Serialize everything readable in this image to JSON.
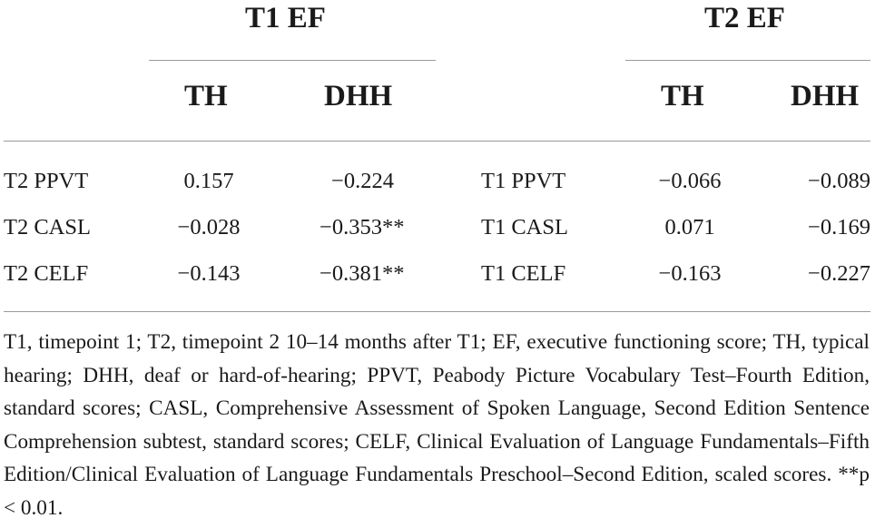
{
  "table": {
    "group_headers": {
      "left": "T1 EF",
      "right": "T2 EF"
    },
    "sub_headers": {
      "left": [
        "TH",
        "DHH"
      ],
      "right": [
        "TH",
        "DHH"
      ]
    },
    "left_rows": [
      {
        "label": "T2 PPVT",
        "th": "0.157",
        "dhh": "−0.224"
      },
      {
        "label": "T2 CASL",
        "th": "−0.028",
        "dhh": "−0.353**"
      },
      {
        "label": "T2 CELF",
        "th": "−0.143",
        "dhh": "−0.381**"
      }
    ],
    "right_rows": [
      {
        "label": "T1 PPVT",
        "th": "−0.066",
        "dhh": "−0.089"
      },
      {
        "label": "T1 CASL",
        "th": "0.071",
        "dhh": "−0.169"
      },
      {
        "label": "T1 CELF",
        "th": "−0.163",
        "dhh": "−0.227"
      }
    ]
  },
  "footnote": "T1, timepoint 1; T2, timepoint 2 10–14 months after T1; EF, executive functioning score; TH, typical hearing; DHH, deaf or hard-of-hearing; PPVT, Peabody Picture Vocabulary Test–Fourth Edition, standard scores; CASL, Comprehensive Assessment of Spoken Language, Second Edition Sentence Comprehension subtest, standard scores; CELF, Clinical Evaluation of Language Fundamentals–Fifth Edition/Clinical Evaluation of Language Fundamentals Preschool–Second Edition, scaled scores. **p < 0.01."
}
